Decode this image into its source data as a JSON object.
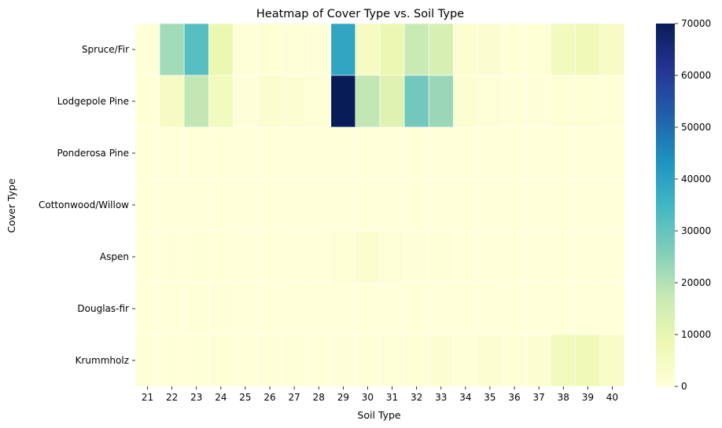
{
  "chart_data": {
    "type": "heatmap",
    "title": "Heatmap of Cover Type vs. Soil Type",
    "xlabel": "Soil Type",
    "ylabel": "Cover Type",
    "x_categories": [
      "21",
      "22",
      "23",
      "24",
      "25",
      "26",
      "27",
      "28",
      "29",
      "30",
      "31",
      "32",
      "33",
      "34",
      "35",
      "36",
      "37",
      "38",
      "39",
      "40"
    ],
    "y_categories": [
      "Spruce/Fir",
      "Lodgepole Pine",
      "Ponderosa Pine",
      "Cottonwood/Willow",
      "Aspen",
      "Douglas-fir",
      "Krummholz"
    ],
    "values": [
      [
        500,
        22000,
        32000,
        9000,
        700,
        1000,
        800,
        300,
        39000,
        5000,
        9000,
        17000,
        14000,
        1500,
        2000,
        400,
        1000,
        6000,
        7000,
        4000
      ],
      [
        200,
        5000,
        18000,
        6000,
        300,
        2500,
        1500,
        800,
        70000,
        18000,
        12000,
        28000,
        23000,
        1500,
        900,
        600,
        300,
        1200,
        1000,
        600
      ],
      [
        0,
        0,
        200,
        150,
        100,
        50,
        0,
        0,
        0,
        0,
        0,
        0,
        0,
        0,
        0,
        0,
        0,
        0,
        0,
        0
      ],
      [
        0,
        0,
        0,
        0,
        0,
        0,
        0,
        0,
        0,
        0,
        0,
        0,
        0,
        0,
        0,
        0,
        0,
        0,
        0,
        0
      ],
      [
        0,
        300,
        600,
        200,
        100,
        100,
        0,
        0,
        1200,
        2500,
        700,
        300,
        500,
        0,
        0,
        0,
        0,
        0,
        0,
        0
      ],
      [
        0,
        0,
        400,
        300,
        100,
        50,
        0,
        0,
        0,
        0,
        0,
        0,
        0,
        0,
        0,
        0,
        0,
        0,
        0,
        0
      ],
      [
        300,
        400,
        500,
        1000,
        200,
        300,
        400,
        200,
        300,
        500,
        700,
        1200,
        1500,
        400,
        1500,
        800,
        1500,
        6500,
        7000,
        3500
      ]
    ],
    "colorbar": {
      "min": 0,
      "max": 70000,
      "ticks": [
        0,
        10000,
        20000,
        30000,
        40000,
        50000,
        60000,
        70000
      ],
      "colormap": "YlGnBu"
    },
    "cell_border_color": "#ffffff",
    "legend": "colorbar-right",
    "grid": false
  }
}
